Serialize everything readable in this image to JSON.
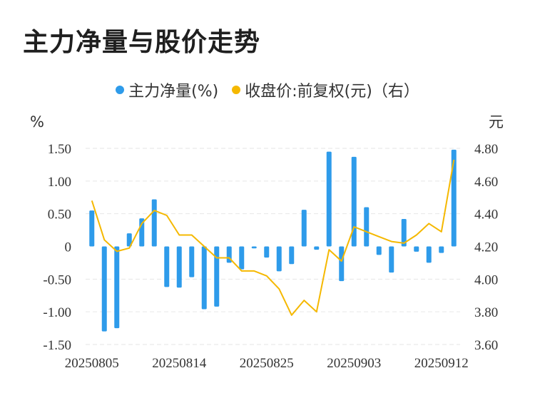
{
  "title": "主力净量与股价走势",
  "chart_data": {
    "type": "bar",
    "title": "主力净量与股价走势",
    "left_unit": "%",
    "right_unit": "元",
    "y_left": {
      "ticks": [
        1.5,
        1.0,
        0.5,
        0,
        -0.5,
        -1.0,
        -1.5
      ],
      "tick_labels": [
        "1.50",
        "1.00",
        "0.50",
        "0",
        "-0.50",
        "-1.00",
        "-1.50"
      ],
      "range": [
        -1.5,
        1.5
      ]
    },
    "y_right": {
      "ticks": [
        4.8,
        4.6,
        4.4,
        4.2,
        4.0,
        3.8,
        3.6
      ],
      "tick_labels": [
        "4.80",
        "4.60",
        "4.40",
        "4.20",
        "4.00",
        "3.80",
        "3.60"
      ],
      "range": [
        3.6,
        4.8
      ]
    },
    "x_tick_labels": [
      {
        "index": 0,
        "label": "20250805"
      },
      {
        "index": 7,
        "label": "20250814"
      },
      {
        "index": 14,
        "label": "20250825"
      },
      {
        "index": 21,
        "label": "20250903"
      },
      {
        "index": 28,
        "label": "20250912"
      }
    ],
    "grid": true,
    "legend_position": "top-center",
    "series": [
      {
        "name": "主力净量(%)",
        "type": "bar",
        "axis": "left",
        "color": "#2E9BEA",
        "values": [
          0.55,
          -1.3,
          -1.25,
          0.2,
          0.43,
          0.72,
          -0.62,
          -0.63,
          -0.47,
          -0.96,
          -0.92,
          -0.25,
          -0.35,
          -0.03,
          -0.17,
          -0.38,
          -0.27,
          0.56,
          -0.05,
          1.45,
          -0.53,
          1.37,
          0.6,
          -0.13,
          -0.4,
          0.42,
          -0.08,
          -0.25,
          -0.1,
          1.48
        ]
      },
      {
        "name": "收盘价:前复权(元)（右）",
        "type": "line",
        "axis": "right",
        "color": "#F5B800",
        "values": [
          4.48,
          4.24,
          4.17,
          4.19,
          4.34,
          4.42,
          4.39,
          4.27,
          4.27,
          4.2,
          4.13,
          4.13,
          4.05,
          4.05,
          4.02,
          3.94,
          3.78,
          3.87,
          3.8,
          4.18,
          4.11,
          4.32,
          4.29,
          4.26,
          4.23,
          4.22,
          4.27,
          4.34,
          4.29,
          4.73
        ]
      }
    ]
  }
}
